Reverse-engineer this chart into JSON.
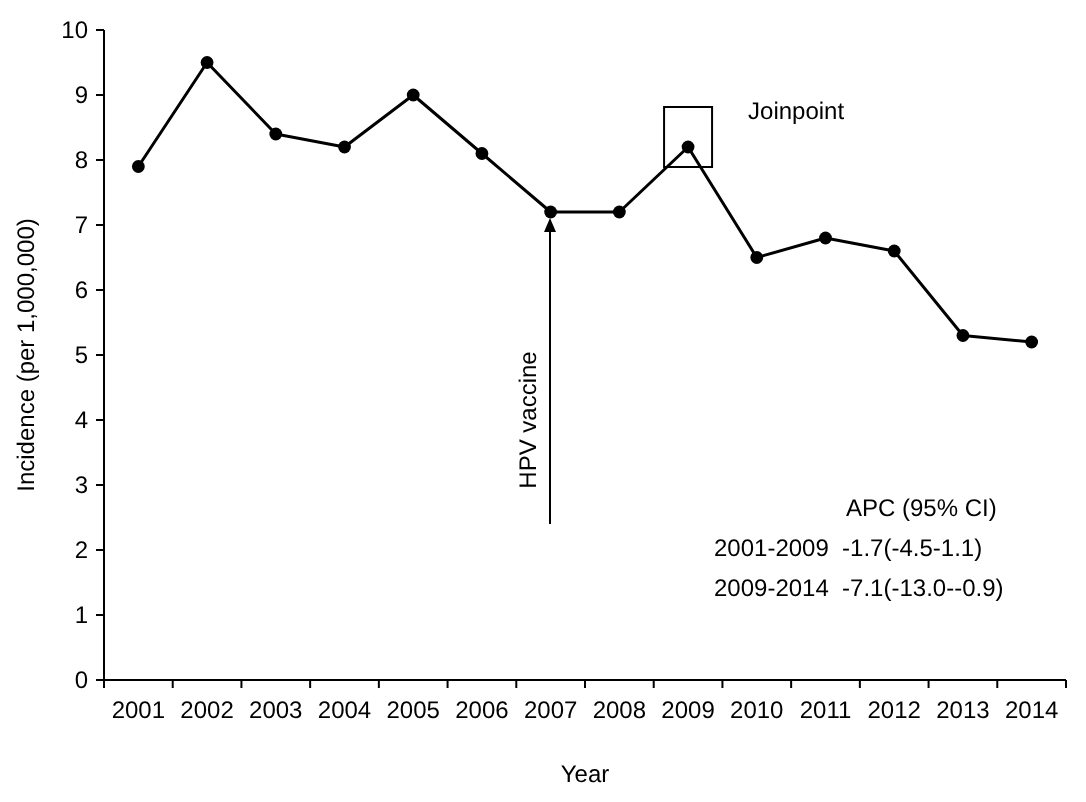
{
  "chart_data": {
    "type": "line",
    "xlabel": "Year",
    "ylabel": "Incidence (per 1,000,000)",
    "categories": [
      "2001",
      "2002",
      "2003",
      "2004",
      "2005",
      "2006",
      "2007",
      "2008",
      "2009",
      "2010",
      "2011",
      "2012",
      "2013",
      "2014"
    ],
    "values": [
      7.9,
      9.5,
      8.4,
      8.2,
      9.0,
      8.1,
      7.2,
      7.2,
      8.2,
      6.5,
      6.8,
      6.6,
      5.3,
      5.2
    ],
    "color": "#000000",
    "marker": "circle",
    "line_style": "solid",
    "grid": false,
    "legend": false,
    "ylim": [
      0,
      10
    ],
    "yticks": [
      0,
      1,
      2,
      3,
      4,
      5,
      6,
      7,
      8,
      9,
      10
    ],
    "annotations": [
      "HPV vaccine",
      {
        "text": "Joinpoint",
        "x": "2009",
        "y": 8.2
      },
      "APC (95% CI)",
      "2001-2009  -1.7(-4.5-1.1)",
      "2009-2014  -7.1(-13.0--0.9)"
    ]
  }
}
